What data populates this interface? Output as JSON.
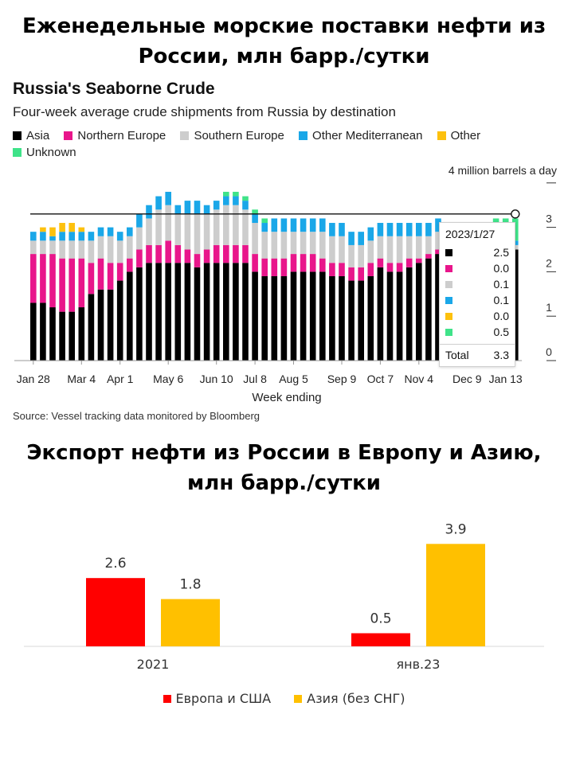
{
  "heading1": "Еженедельные морские поставки нефти из России, млн барр./сутки",
  "heading2": "Экспорт нефти из России в Европу и Азию, млн барр./сутки",
  "chart_data": [
    {
      "type": "bar",
      "stacked": true,
      "title": "Russia's Seaborne Crude",
      "subtitle": "Four-week average crude shipments from Russia by destination",
      "unit_label": "4 million barrels a day",
      "xlabel": "Week ending",
      "source": "Source: Vessel tracking data monitored by Bloomberg",
      "ylim": [
        0,
        4
      ],
      "yticks": [
        "0",
        "1",
        "2",
        "3"
      ],
      "xtick_labels": [
        "Jan 28",
        "Mar 4",
        "Apr 1",
        "May 6",
        "Jun 10",
        "Jul 8",
        "Aug 5",
        "Sep 9",
        "Oct 7",
        "Nov 4",
        "Dec 9",
        "Jan 13"
      ],
      "xtick_index": [
        0,
        5,
        9,
        14,
        19,
        23,
        27,
        32,
        36,
        40,
        45,
        49
      ],
      "reference_line": 3.3,
      "series": [
        {
          "name": "Asia",
          "color": "#000000",
          "values": [
            1.3,
            1.3,
            1.2,
            1.1,
            1.1,
            1.2,
            1.5,
            1.6,
            1.6,
            1.8,
            2.0,
            2.1,
            2.2,
            2.2,
            2.2,
            2.2,
            2.2,
            2.1,
            2.2,
            2.2,
            2.2,
            2.2,
            2.2,
            2.0,
            1.9,
            1.9,
            1.9,
            2.0,
            2.0,
            2.0,
            2.0,
            1.9,
            1.9,
            1.8,
            1.8,
            1.9,
            2.1,
            2.0,
            2.0,
            2.1,
            2.2,
            2.3,
            2.4,
            2.4,
            2.4,
            2.4,
            2.4,
            2.5,
            2.6,
            2.5,
            2.5
          ]
        },
        {
          "name": "Northern Europe",
          "color": "#e8168b",
          "values": [
            1.1,
            1.1,
            1.2,
            1.2,
            1.2,
            1.1,
            0.7,
            0.7,
            0.6,
            0.4,
            0.3,
            0.4,
            0.4,
            0.4,
            0.5,
            0.4,
            0.3,
            0.3,
            0.3,
            0.4,
            0.4,
            0.4,
            0.4,
            0.4,
            0.4,
            0.4,
            0.4,
            0.4,
            0.4,
            0.4,
            0.3,
            0.3,
            0.3,
            0.3,
            0.3,
            0.3,
            0.2,
            0.2,
            0.2,
            0.2,
            0.1,
            0.1,
            0.1,
            0.1,
            0.1,
            0.0,
            0.0,
            0.0,
            0.0,
            0.0,
            0.0
          ]
        },
        {
          "name": "Southern Europe",
          "color": "#cdcdcd",
          "values": [
            0.3,
            0.3,
            0.3,
            0.4,
            0.4,
            0.4,
            0.5,
            0.5,
            0.6,
            0.5,
            0.5,
            0.5,
            0.6,
            0.8,
            0.8,
            0.7,
            0.8,
            0.9,
            0.8,
            0.8,
            0.9,
            0.9,
            0.8,
            0.7,
            0.6,
            0.6,
            0.6,
            0.5,
            0.5,
            0.5,
            0.6,
            0.6,
            0.6,
            0.5,
            0.5,
            0.5,
            0.5,
            0.6,
            0.6,
            0.5,
            0.5,
            0.4,
            0.4,
            0.3,
            0.3,
            0.3,
            0.2,
            0.2,
            0.1,
            0.1,
            0.1
          ]
        },
        {
          "name": "Other Mediterranean",
          "color": "#1aa7e8",
          "values": [
            0.2,
            0.2,
            0.1,
            0.2,
            0.2,
            0.2,
            0.2,
            0.2,
            0.2,
            0.2,
            0.2,
            0.3,
            0.3,
            0.3,
            0.3,
            0.2,
            0.3,
            0.3,
            0.2,
            0.2,
            0.2,
            0.2,
            0.2,
            0.2,
            0.2,
            0.3,
            0.3,
            0.3,
            0.3,
            0.3,
            0.3,
            0.3,
            0.3,
            0.3,
            0.3,
            0.3,
            0.3,
            0.3,
            0.3,
            0.3,
            0.3,
            0.3,
            0.3,
            0.3,
            0.3,
            0.2,
            0.2,
            0.1,
            0.1,
            0.1,
            0.1
          ]
        },
        {
          "name": "Other",
          "color": "#fdc10e",
          "values": [
            0.0,
            0.1,
            0.2,
            0.2,
            0.2,
            0.1,
            0.0,
            0.0,
            0.0,
            0.0,
            0.0,
            0.0,
            0.0,
            0.0,
            0.0,
            0.0,
            0.0,
            0.0,
            0.0,
            0.0,
            0.0,
            0.0,
            0.0,
            0.0,
            0.0,
            0.0,
            0.0,
            0.0,
            0.0,
            0.0,
            0.0,
            0.0,
            0.0,
            0.0,
            0.0,
            0.0,
            0.0,
            0.0,
            0.0,
            0.0,
            0.0,
            0.0,
            0.0,
            0.0,
            0.0,
            0.0,
            0.0,
            0.0,
            0.0,
            0.0,
            0.0
          ]
        },
        {
          "name": "Unknown",
          "color": "#3fe389",
          "values": [
            0.0,
            0.0,
            0.0,
            0.0,
            0.0,
            0.0,
            0.0,
            0.0,
            0.0,
            0.0,
            0.0,
            0.0,
            0.0,
            0.0,
            0.0,
            0.0,
            0.0,
            0.0,
            0.0,
            0.0,
            0.1,
            0.1,
            0.1,
            0.1,
            0.1,
            0.0,
            0.0,
            0.0,
            0.0,
            0.0,
            0.0,
            0.0,
            0.0,
            0.0,
            0.0,
            0.0,
            0.0,
            0.0,
            0.0,
            0.0,
            0.0,
            0.0,
            0.0,
            0.0,
            0.0,
            0.1,
            0.2,
            0.3,
            0.4,
            0.5,
            0.5
          ]
        }
      ],
      "tooltip": {
        "date": "2023/1/27",
        "rows": [
          {
            "value": "2.5",
            "color": "#000000"
          },
          {
            "value": "0.0",
            "color": "#e8168b"
          },
          {
            "value": "0.1",
            "color": "#cdcdcd"
          },
          {
            "value": "0.1",
            "color": "#1aa7e8"
          },
          {
            "value": "0.0",
            "color": "#fdc10e"
          },
          {
            "value": "0.5",
            "color": "#3fe389"
          }
        ],
        "total_label": "Total",
        "total_value": "3.3"
      }
    },
    {
      "type": "bar",
      "categories": [
        "2021",
        "янв.23"
      ],
      "series": [
        {
          "name": "Европа и США",
          "color": "#ff0000",
          "values": [
            2.6,
            0.5
          ]
        },
        {
          "name": "Азия (без СНГ)",
          "color": "#ffc000",
          "values": [
            1.8,
            3.9
          ]
        }
      ],
      "ylim": [
        0,
        4.2
      ],
      "legend_position": "bottom"
    }
  ]
}
